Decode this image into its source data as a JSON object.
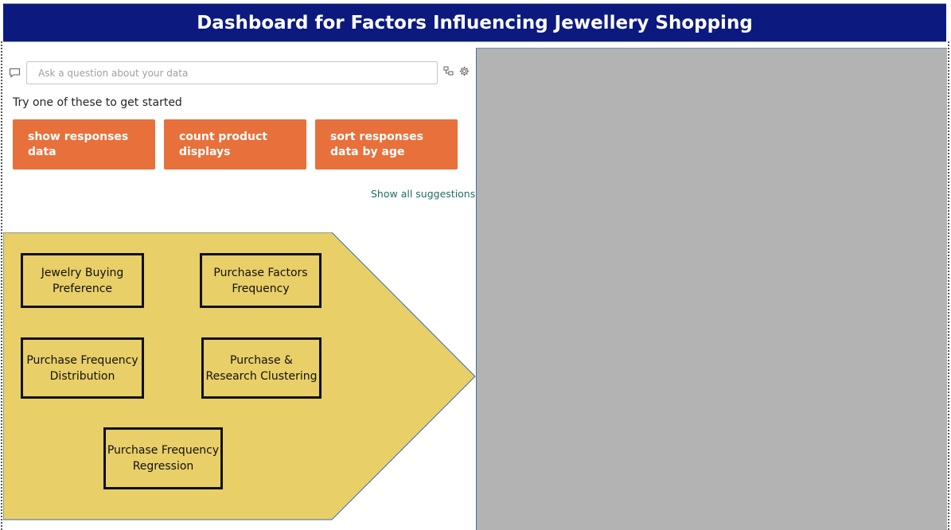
{
  "title": "Dashboard for Factors Influencing Jewellery Shopping",
  "qa": {
    "placeholder": "Ask a question about your data",
    "prompt_text": "Try one of these to get started",
    "suggestions": [
      "show responses data",
      "count product displays",
      "sort responses data by age"
    ],
    "show_all_label": "Show all suggestions"
  },
  "navigation": {
    "buttons": [
      "Jewelry Buying Preference",
      "Purchase Factors Frequency",
      "Purchase Frequency Distribution",
      "Purchase & Research Clustering",
      "Purchase Frequency Regression"
    ]
  },
  "colors": {
    "title_bar": "#0c1a7f",
    "suggestion_bg": "#e8703b",
    "nav_shape_fill": "#e8cf68",
    "visual_placeholder": "#b3b3b3"
  },
  "icons": [
    "chat-icon",
    "hierarchy-icon",
    "gear-icon"
  ]
}
